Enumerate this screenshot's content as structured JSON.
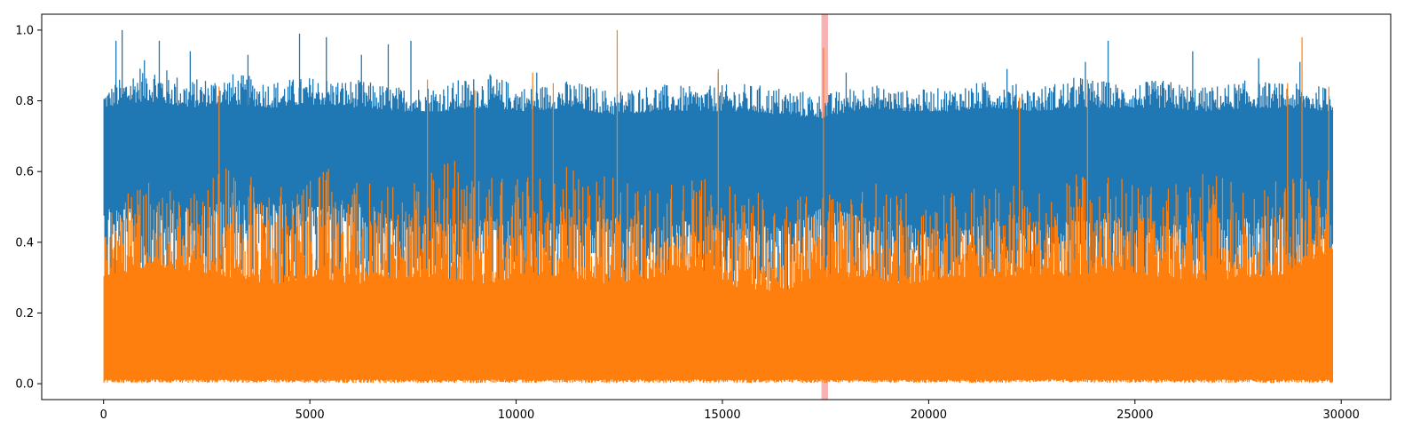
{
  "chart_data": {
    "type": "line",
    "title": "",
    "xlabel": "",
    "ylabel": "",
    "xlim": [
      -1500,
      31200
    ],
    "ylim": [
      -0.045,
      1.045
    ],
    "x_ticks": [
      0,
      5000,
      10000,
      15000,
      20000,
      25000,
      30000
    ],
    "x_tick_labels": [
      "0",
      "5000",
      "10000",
      "15000",
      "20000",
      "25000",
      "30000"
    ],
    "y_ticks": [
      0.0,
      0.2,
      0.4,
      0.6,
      0.8,
      1.0
    ],
    "y_tick_labels": [
      "0.0",
      "0.2",
      "0.4",
      "0.6",
      "0.8",
      "1.0"
    ],
    "grid": false,
    "legend": "none",
    "n_points": 29800,
    "highlight_span": {
      "x0": 17400,
      "x1": 17560,
      "color": "#f4a6a6"
    },
    "series": [
      {
        "color": "#1f77b4",
        "linestyle": "solid",
        "x_start": 0,
        "x_end": 29800,
        "upper_envelope": [
          0.83,
          0.92,
          0.86,
          0.88,
          0.86,
          0.87,
          0.86,
          0.84,
          0.85,
          0.88,
          0.84,
          0.86,
          0.83,
          0.85,
          0.84,
          0.85,
          0.84,
          0.82,
          0.85,
          0.83,
          0.84,
          0.86,
          0.84,
          0.87,
          0.85,
          0.86,
          0.84,
          0.86,
          0.85,
          0.84
        ],
        "typical_upper": [
          0.78,
          0.8,
          0.78,
          0.79,
          0.78,
          0.79,
          0.78,
          0.77,
          0.77,
          0.78,
          0.77,
          0.78,
          0.76,
          0.77,
          0.77,
          0.77,
          0.76,
          0.75,
          0.78,
          0.77,
          0.77,
          0.78,
          0.77,
          0.78,
          0.78,
          0.78,
          0.77,
          0.78,
          0.78,
          0.77
        ],
        "typical_lower": [
          0.52,
          0.48,
          0.5,
          0.52,
          0.51,
          0.5,
          0.51,
          0.46,
          0.45,
          0.46,
          0.47,
          0.45,
          0.47,
          0.44,
          0.47,
          0.46,
          0.44,
          0.5,
          0.47,
          0.45,
          0.43,
          0.46,
          0.45,
          0.46,
          0.47,
          0.45,
          0.46,
          0.47,
          0.48,
          0.47
        ],
        "lower_envelope": [
          0.22,
          0.19,
          0.2,
          0.24,
          0.22,
          0.24,
          0.26,
          0.22,
          0.22,
          0.25,
          0.23,
          0.22,
          0.19,
          0.22,
          0.24,
          0.26,
          0.25,
          0.24,
          0.2,
          0.22,
          0.22,
          0.25,
          0.24,
          0.23,
          0.2,
          0.19,
          0.24,
          0.21,
          0.22,
          0.22
        ],
        "peaks": [
          [
            300,
            0.97
          ],
          [
            450,
            1.0
          ],
          [
            1350,
            0.97
          ],
          [
            2100,
            0.94
          ],
          [
            3500,
            0.93
          ],
          [
            4750,
            0.99
          ],
          [
            5400,
            0.98
          ],
          [
            6250,
            0.93
          ],
          [
            6900,
            0.96
          ],
          [
            7450,
            0.97
          ],
          [
            10500,
            0.88
          ],
          [
            14900,
            0.88
          ],
          [
            18000,
            0.88
          ],
          [
            21900,
            0.89
          ],
          [
            23800,
            0.91
          ],
          [
            24350,
            0.97
          ],
          [
            26400,
            0.94
          ],
          [
            28000,
            0.92
          ],
          [
            29000,
            0.91
          ]
        ]
      },
      {
        "color": "#ff7f0e",
        "linestyle": "dashdot",
        "x_start": 0,
        "x_end": 29800,
        "upper_envelope": [
          0.52,
          0.57,
          0.56,
          0.62,
          0.55,
          0.63,
          0.57,
          0.56,
          0.65,
          0.58,
          0.6,
          0.62,
          0.59,
          0.55,
          0.6,
          0.56,
          0.52,
          0.55,
          0.58,
          0.54,
          0.55,
          0.56,
          0.56,
          0.6,
          0.58,
          0.56,
          0.6,
          0.57,
          0.58,
          0.62
        ],
        "typical_upper": [
          0.3,
          0.33,
          0.32,
          0.3,
          0.28,
          0.3,
          0.28,
          0.3,
          0.3,
          0.28,
          0.31,
          0.3,
          0.28,
          0.3,
          0.32,
          0.27,
          0.26,
          0.3,
          0.3,
          0.28,
          0.3,
          0.3,
          0.31,
          0.3,
          0.32,
          0.3,
          0.29,
          0.3,
          0.31,
          0.38
        ],
        "typical_lower": [
          0.0,
          0.0,
          0.0,
          0.0,
          0.0,
          0.0,
          0.0,
          0.0,
          0.0,
          0.0,
          0.0,
          0.0,
          0.0,
          0.0,
          0.0,
          0.0,
          0.0,
          0.0,
          0.0,
          0.0,
          0.0,
          0.0,
          0.0,
          0.0,
          0.0,
          0.0,
          0.0,
          0.0,
          0.0,
          0.0
        ],
        "lower_envelope": [
          0.0,
          0.0,
          0.0,
          0.0,
          0.0,
          0.0,
          0.0,
          0.0,
          0.0,
          0.0,
          0.0,
          0.0,
          0.0,
          0.0,
          0.0,
          0.0,
          0.0,
          0.0,
          0.0,
          0.0,
          0.0,
          0.0,
          0.0,
          0.0,
          0.0,
          0.0,
          0.0,
          0.0,
          0.0,
          0.0
        ],
        "peaks": [
          [
            2800,
            0.84
          ],
          [
            7850,
            0.86
          ],
          [
            9000,
            0.83
          ],
          [
            10400,
            0.88
          ],
          [
            10900,
            0.85
          ],
          [
            12450,
            1.0
          ],
          [
            14900,
            0.89
          ],
          [
            17450,
            0.95
          ],
          [
            22200,
            0.81
          ],
          [
            23850,
            0.86
          ],
          [
            28700,
            0.85
          ],
          [
            29050,
            0.98
          ],
          [
            29700,
            0.84
          ]
        ]
      }
    ]
  }
}
